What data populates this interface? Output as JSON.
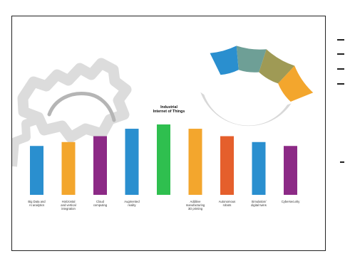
{
  "diagram": {
    "center_label": "Industrial\nInternet of Things",
    "center_label_lines": [
      "Industrial",
      "Internet of Things"
    ],
    "colors": {
      "blue": "#2a8fcf",
      "orange": "#f3a62d",
      "purple": "#8c2a86",
      "green": "#2fbf4f",
      "red": "#e55f2c",
      "teal": "#6e9f96",
      "olive": "#9f9a55",
      "gear": "#d7d7d7",
      "gear_inner": "#a9a9a9"
    },
    "bars": [
      {
        "label": "Big Data and\nAI analytics",
        "lines": [
          "Big Data and",
          "AI analytics"
        ],
        "color": "#2a8fcf",
        "level": 0.45
      },
      {
        "label": "Horizontal\nand vertical\nintegration",
        "lines": [
          "Horizontal",
          "and vertical",
          "integration"
        ],
        "color": "#f3a62d",
        "level": 0.55
      },
      {
        "label": "Cloud\ncomputing",
        "lines": [
          "Cloud",
          "computing"
        ],
        "color": "#8c2a86",
        "level": 0.7
      },
      {
        "label": "Augmented\nreality",
        "lines": [
          "Augmented",
          "reality"
        ],
        "color": "#2a8fcf",
        "level": 0.89
      },
      {
        "label": "",
        "lines": [],
        "color": "#2fbf4f",
        "level": 1.0
      },
      {
        "label": "Additive\nmanufacturing\n3D printing",
        "lines": [
          "Additive",
          "manufacturing",
          "3D printing"
        ],
        "color": "#f3a62d",
        "level": 0.89
      },
      {
        "label": "Autonomous\nrobots",
        "lines": [
          "Autonomous",
          "robots"
        ],
        "color": "#e55f2c",
        "level": 0.7
      },
      {
        "label": "Simulation/\ndigital twins",
        "lines": [
          "Simulation/",
          "digital twins"
        ],
        "color": "#2a8fcf",
        "level": 0.55
      },
      {
        "label": "Cybersecurity",
        "lines": [
          "Cybersecurity"
        ],
        "color": "#8c2a86",
        "level": 0.45
      }
    ]
  }
}
